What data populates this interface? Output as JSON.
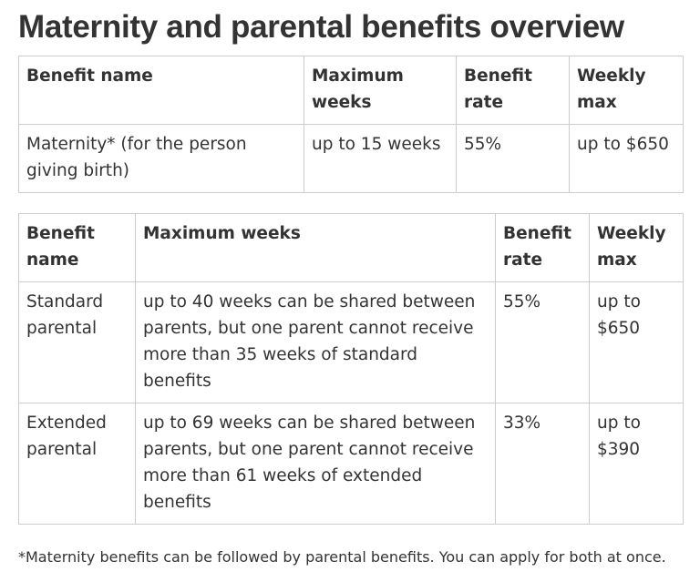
{
  "page_title": "Maternity and parental benefits overview",
  "maternity_table": {
    "headers": [
      "Benefit name",
      "Maximum weeks",
      "Benefit rate",
      "Weekly max"
    ],
    "rows": [
      [
        "Maternity* (for the person giving birth)",
        "up to 15 weeks",
        "55%",
        "up to $650"
      ]
    ]
  },
  "parental_table": {
    "headers": [
      "Benefit name",
      "Maximum weeks",
      "Benefit rate",
      "Weekly max"
    ],
    "rows": [
      [
        "Standard parental",
        "up to 40 weeks can be shared between parents, but one parent cannot receive more than 35 weeks of standard benefits",
        "55%",
        "up to $650"
      ],
      [
        "Extended parental",
        "up to 69 weeks can be shared between parents, but one parent cannot receive more than 61 weeks of extended benefits",
        "33%",
        "up to $390"
      ]
    ]
  },
  "footnote": "*Maternity benefits can be followed by parental benefits. You can apply for both at once."
}
